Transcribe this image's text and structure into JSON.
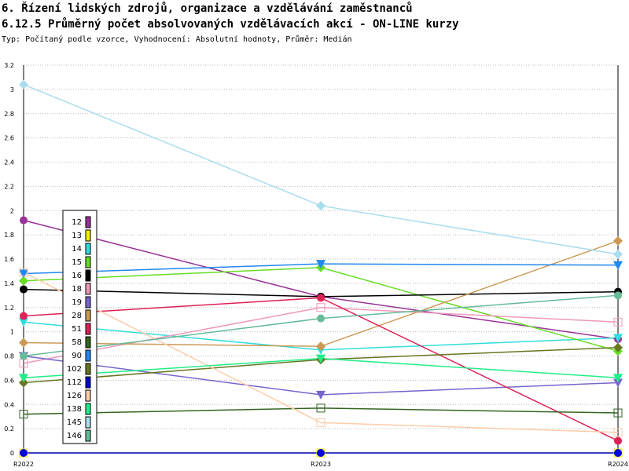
{
  "chart_data": {
    "type": "line",
    "title": "6. Řízení lidských zdrojů, organizace a vzdělávání zaměstnanců",
    "subtitle": "6.12.5 Průměrný počet absolvovaných vzdělávacích akcí - ON-LINE kurzy",
    "note": "Typ: Počítaný podle vzorce, Vyhodnocení: Absolutní hodnoty, Průměr: Medián",
    "categories": [
      "R2022",
      "R2023",
      "R2024"
    ],
    "ylim": [
      0,
      3.2
    ],
    "yticks": [
      0,
      0.2,
      0.4,
      0.6,
      0.8,
      1,
      1.2,
      1.4,
      1.6,
      1.8,
      2,
      2.2,
      2.4,
      2.6,
      2.8,
      3,
      3.2
    ],
    "grid": true,
    "series": [
      {
        "name": "12",
        "color": "#993399",
        "values": [
          1.92,
          1.29,
          0.94
        ]
      },
      {
        "name": "13",
        "color": "#eeee00",
        "values": [
          0,
          0,
          0
        ]
      },
      {
        "name": "14",
        "color": "#33dddd",
        "values": [
          1.08,
          0.85,
          0.95
        ]
      },
      {
        "name": "15",
        "color": "#66dd22",
        "values": [
          1.42,
          1.53,
          0.84
        ]
      },
      {
        "name": "16",
        "color": "#000000",
        "values": [
          1.35,
          1.29,
          1.33
        ]
      },
      {
        "name": "18",
        "color": "#ee99bb",
        "values": [
          0.74,
          1.2,
          1.08
        ]
      },
      {
        "name": "19",
        "color": "#7766cc",
        "values": [
          0.8,
          0.48,
          0.58
        ]
      },
      {
        "name": "28",
        "color": "#cc9955",
        "values": [
          0.91,
          0.88,
          1.75
        ]
      },
      {
        "name": "51",
        "color": "#dd2255",
        "values": [
          1.13,
          1.28,
          0.1
        ]
      },
      {
        "name": "58",
        "color": "#336622",
        "values": [
          0.32,
          0.37,
          0.33
        ]
      },
      {
        "name": "90",
        "color": "#2288ee",
        "values": [
          1.48,
          1.56,
          1.55
        ]
      },
      {
        "name": "102",
        "color": "#667722",
        "values": [
          0.58,
          0.77,
          0.87
        ]
      },
      {
        "name": "112",
        "color": "#0000dd",
        "values": [
          0,
          0,
          0
        ]
      },
      {
        "name": "126",
        "color": "#ffccaa",
        "values": [
          1.49,
          0.25,
          0.17
        ]
      },
      {
        "name": "138",
        "color": "#22ee88",
        "values": [
          0.62,
          0.78,
          0.62
        ]
      },
      {
        "name": "145",
        "color": "#aaddee",
        "values": [
          3.04,
          2.04,
          1.64
        ]
      },
      {
        "name": "146",
        "color": "#66bb99",
        "values": [
          0.8,
          1.11,
          1.3
        ]
      }
    ]
  }
}
